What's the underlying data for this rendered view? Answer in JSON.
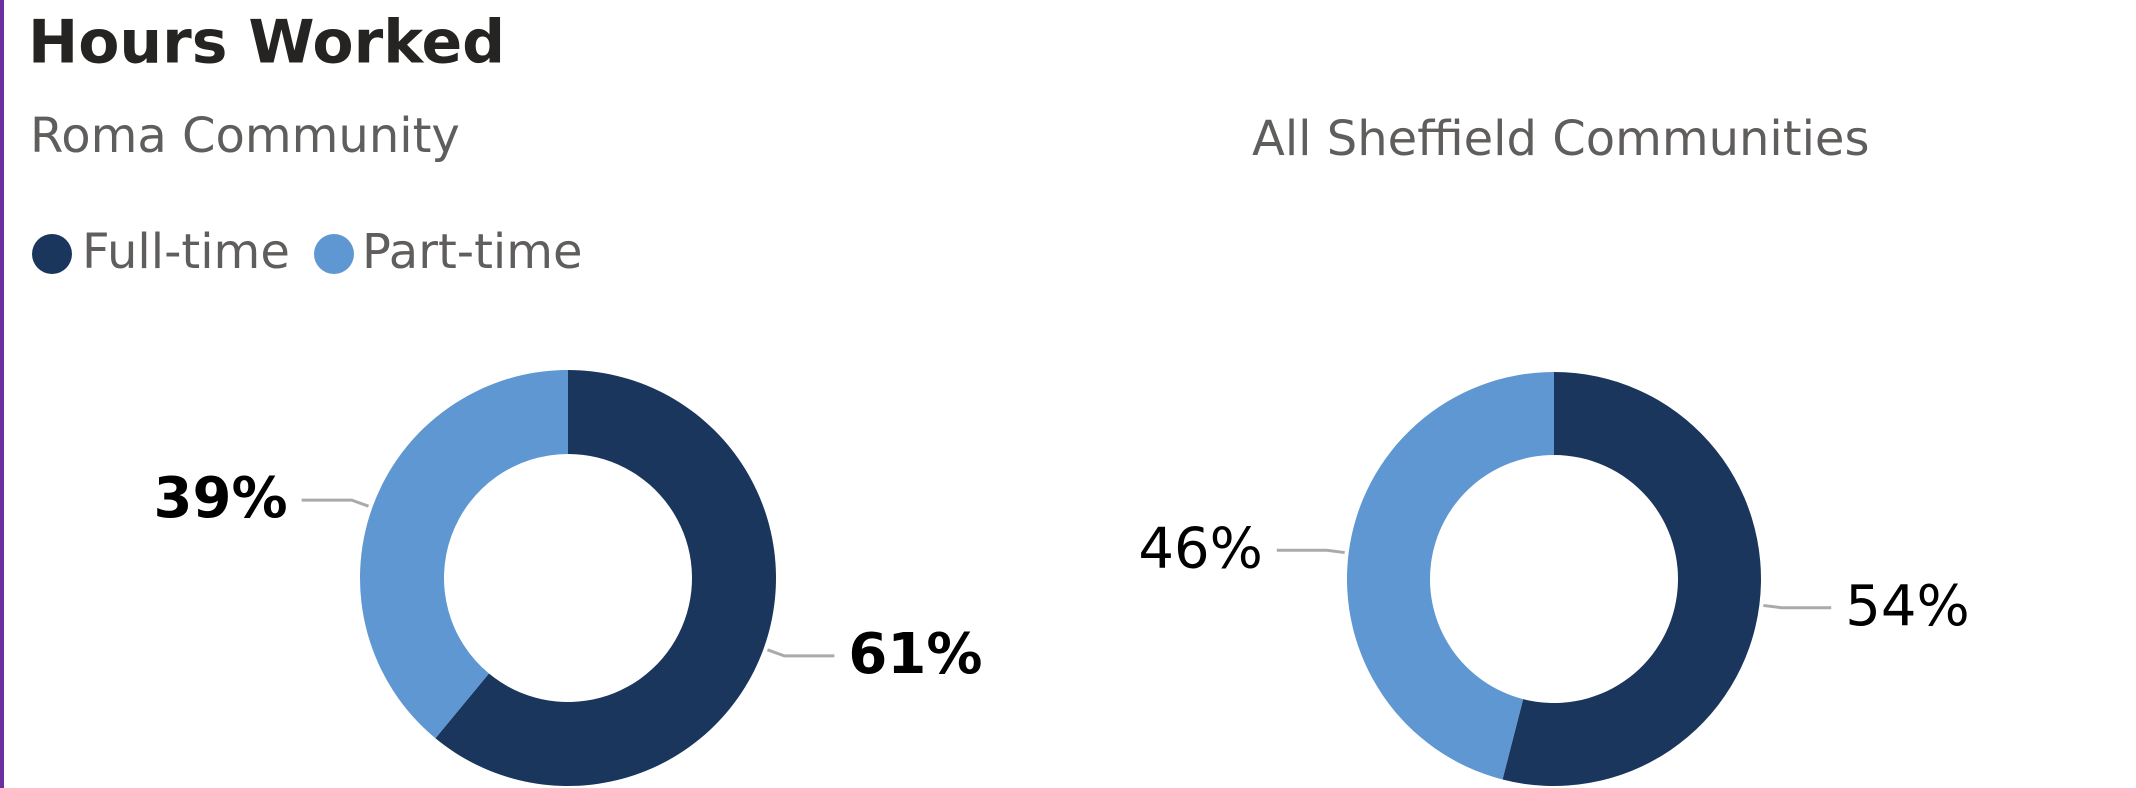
{
  "title": "Hours Worked",
  "chart_data": [
    {
      "type": "pie",
      "subtitle": "Roma Community",
      "categories": [
        "Full-time",
        "Part-time"
      ],
      "values": [
        61,
        39
      ],
      "value_labels": [
        "61%",
        "39%"
      ],
      "colors": [
        "#1b365d",
        "#5e97d1"
      ]
    },
    {
      "type": "pie",
      "subtitle": "All Sheffield Communities",
      "categories": [
        "Full-time",
        "Part-time"
      ],
      "values": [
        54,
        46
      ],
      "value_labels": [
        "54%",
        "46%"
      ],
      "colors": [
        "#1b365d",
        "#5e97d1"
      ]
    }
  ]
}
